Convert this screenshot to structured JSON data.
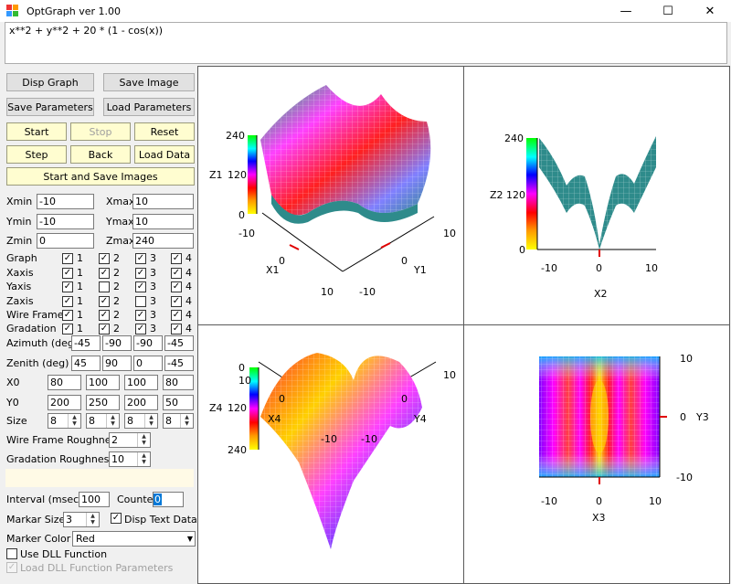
{
  "window": {
    "title": "OptGraph   ver 1.00",
    "minimize": "—",
    "maximize": "☐",
    "close": "✕"
  },
  "formula": "x**2 + y**2 + 20 * (1 - cos(x))",
  "buttons": {
    "disp_graph": "Disp Graph",
    "save_image": "Save Image",
    "save_parameters": "Save Parameters",
    "load_parameters": "Load Parameters",
    "start": "Start",
    "stop": "Stop",
    "reset": "Reset",
    "step": "Step",
    "back": "Back",
    "load_data": "Load Data",
    "start_save": "Start and Save Images"
  },
  "ranges": {
    "xmin_label": "Xmin",
    "xmin": "-10",
    "xmax_label": "Xmax",
    "xmax": "10",
    "ymin_label": "Ymin",
    "ymin": "-10",
    "ymax_label": "Ymax",
    "ymax": "10",
    "zmin_label": "Zmin",
    "zmin": "0",
    "zmax_label": "Zmax",
    "zmax": "240"
  },
  "checks": {
    "graph": "Graph",
    "xaxis": "Xaxis",
    "yaxis": "Yaxis",
    "zaxis": "Zaxis",
    "wire_frame": "Wire Frame",
    "gradation": "Gradation",
    "nums": [
      "1",
      "2",
      "3",
      "4"
    ],
    "checked_glyph": "✓"
  },
  "params": {
    "azimuth_label": "Azimuth (deg)",
    "azimuth": [
      "-45",
      "-90",
      "-90",
      "-45"
    ],
    "zenith_label": "Zenith (deg)",
    "zenith": [
      "45",
      "90",
      "0",
      "-45"
    ],
    "x0_label": "X0",
    "x0": [
      "80",
      "100",
      "100",
      "80"
    ],
    "y0_label": "Y0",
    "y0": [
      "200",
      "250",
      "200",
      "50"
    ],
    "size_label": "Size",
    "size": [
      "8",
      "8",
      "8",
      "8"
    ],
    "wire_rough_label": "Wire Frame Roughness",
    "wire_rough": "2",
    "grad_rough_label": "Gradation Roughness",
    "grad_rough": "10"
  },
  "bottom": {
    "interval_label": "Interval (msec)",
    "interval": "100",
    "counter_label": "Counter",
    "counter": "0",
    "marker_size_label": "Markar Size",
    "marker_size": "3",
    "disp_text": "Disp Text Data",
    "marker_color_label": "Marker Color",
    "marker_color": "Red",
    "use_dll": "Use DLL Function",
    "load_dll": "Load DLL Function Parameters"
  },
  "graph1": {
    "z_label": "Z1",
    "x_label": "X1",
    "y_label": "Y1",
    "z_ticks": [
      "240",
      "120",
      "0"
    ],
    "x_ticks": [
      "-10",
      "0",
      "10"
    ],
    "y_ticks": [
      "-10",
      "0",
      "10"
    ]
  },
  "graph2": {
    "z_label": "Z2",
    "x_label": "X2",
    "z_ticks": [
      "240",
      "120",
      "0"
    ],
    "x_ticks": [
      "-10",
      "0",
      "10"
    ]
  },
  "graph3": {
    "x_label": "X3",
    "y_label": "Y3",
    "x_ticks": [
      "-10",
      "0",
      "10"
    ],
    "y_ticks": [
      "10",
      "0",
      "-10"
    ]
  },
  "graph4": {
    "z_label": "Z4",
    "x_label": "X4",
    "y_label": "Y4",
    "z_ticks": [
      "0",
      "120",
      "240"
    ],
    "x_ticks": [
      "10",
      "0",
      "-10"
    ],
    "y_ticks": [
      "-10",
      "0",
      "10"
    ]
  },
  "colors": {
    "surface_teal": "#2e8b8b",
    "grid_line": "#5a5a5a",
    "marker": "#e00000"
  }
}
